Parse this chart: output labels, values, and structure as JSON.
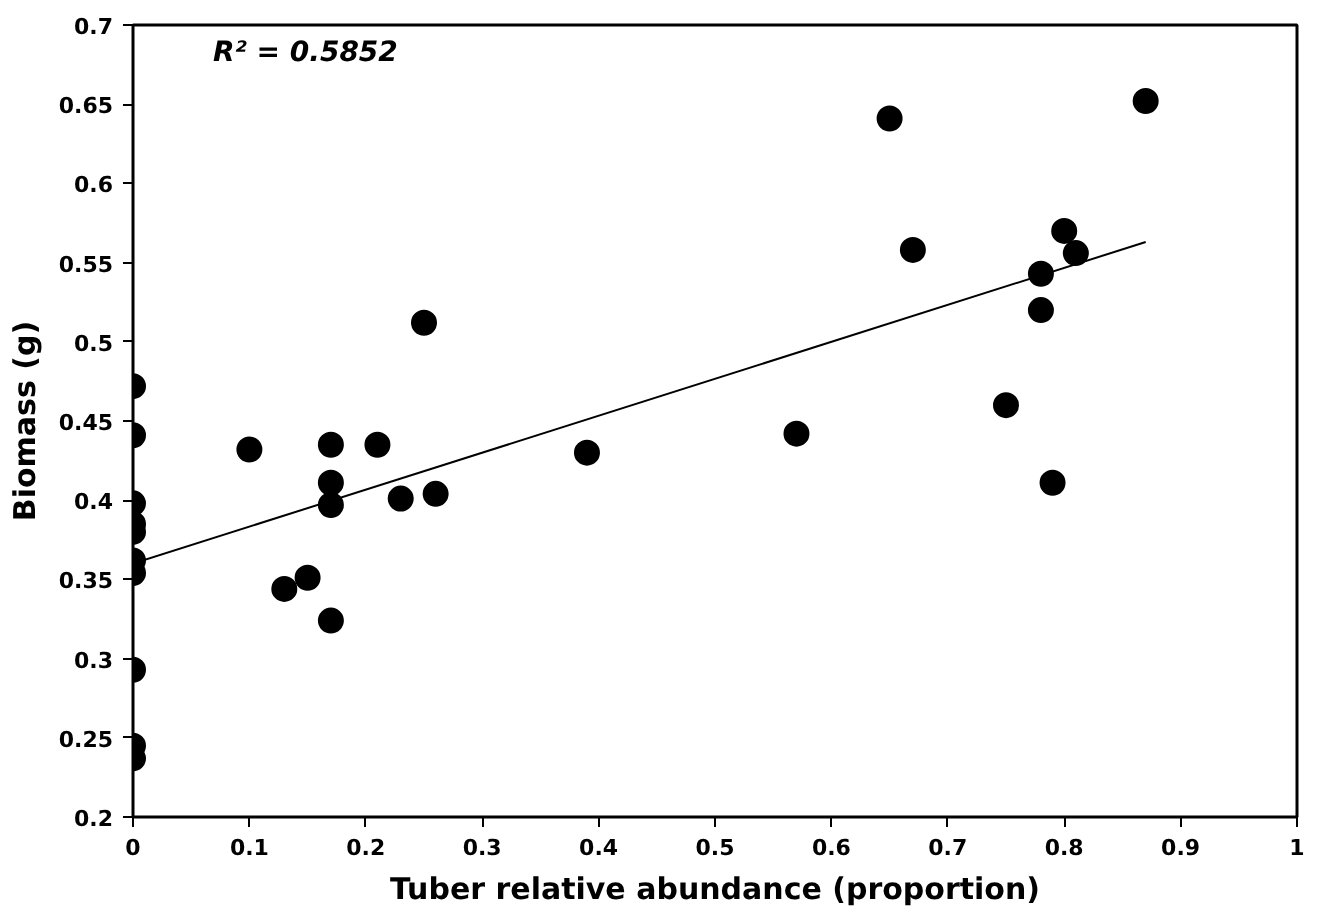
{
  "chart_data": {
    "type": "scatter",
    "xlabel": "Tuber relative abundance (proportion)",
    "ylabel": "Biomass (g)",
    "annotations": [
      "R² = 0.5852"
    ],
    "xlim": [
      0,
      1
    ],
    "xticks": [
      0,
      0.1,
      0.2,
      0.3,
      0.4,
      0.5,
      0.6,
      0.7,
      0.8,
      0.9,
      1
    ],
    "ylim": [
      0.2,
      0.7
    ],
    "yticks": [
      0.2,
      0.25,
      0.3,
      0.35,
      0.4,
      0.45,
      0.5,
      0.55,
      0.6,
      0.65,
      0.7
    ],
    "grid": false,
    "series": [
      {
        "marker": "circle",
        "color": "#000000",
        "x": [
          0,
          0,
          0,
          0,
          0,
          0,
          0,
          0,
          0,
          0,
          0.1,
          0.13,
          0.15,
          0.17,
          0.17,
          0.17,
          0.17,
          0.21,
          0.23,
          0.25,
          0.26,
          0.39,
          0.57,
          0.65,
          0.67,
          0.75,
          0.78,
          0.78,
          0.79,
          0.8,
          0.81,
          0.87
        ],
        "values": [
          0.472,
          0.441,
          0.398,
          0.385,
          0.38,
          0.362,
          0.354,
          0.293,
          0.245,
          0.237,
          0.432,
          0.344,
          0.351,
          0.435,
          0.411,
          0.397,
          0.324,
          0.435,
          0.401,
          0.512,
          0.404,
          0.43,
          0.442,
          0.641,
          0.558,
          0.46,
          0.543,
          0.52,
          0.411,
          0.57,
          0.556,
          0.652
        ]
      },
      {
        "type": "line",
        "marker": "none",
        "color": "#000000",
        "x": [
          0,
          0.87
        ],
        "values": [
          0.36,
          0.563
        ]
      }
    ]
  }
}
